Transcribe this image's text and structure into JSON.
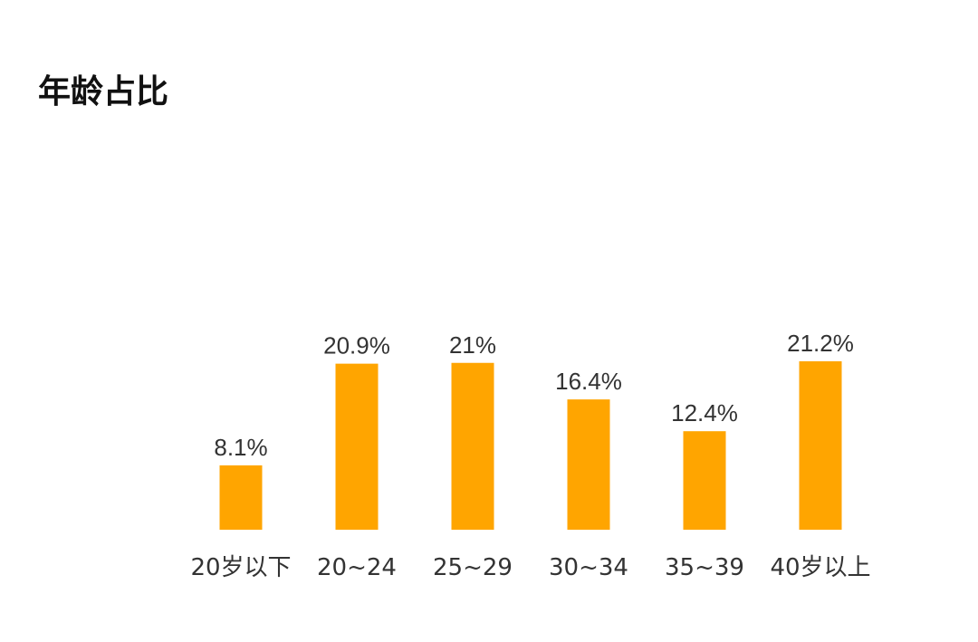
{
  "chart_data": {
    "type": "bar",
    "title": "年龄占比",
    "categories": [
      "20岁以下",
      "20~24",
      "25~29",
      "30~34",
      "35~39",
      "40岁以上"
    ],
    "values": [
      8.1,
      20.9,
      21,
      16.4,
      12.4,
      21.2
    ],
    "data_labels": [
      "8.1%",
      "20.9%",
      "21%",
      "16.4%",
      "12.4%",
      "21.2%"
    ],
    "xlabel": "",
    "ylabel": "",
    "ylim": [
      0,
      21.2
    ],
    "grid": false,
    "legend": "none",
    "bar_color": "#FFA500"
  }
}
